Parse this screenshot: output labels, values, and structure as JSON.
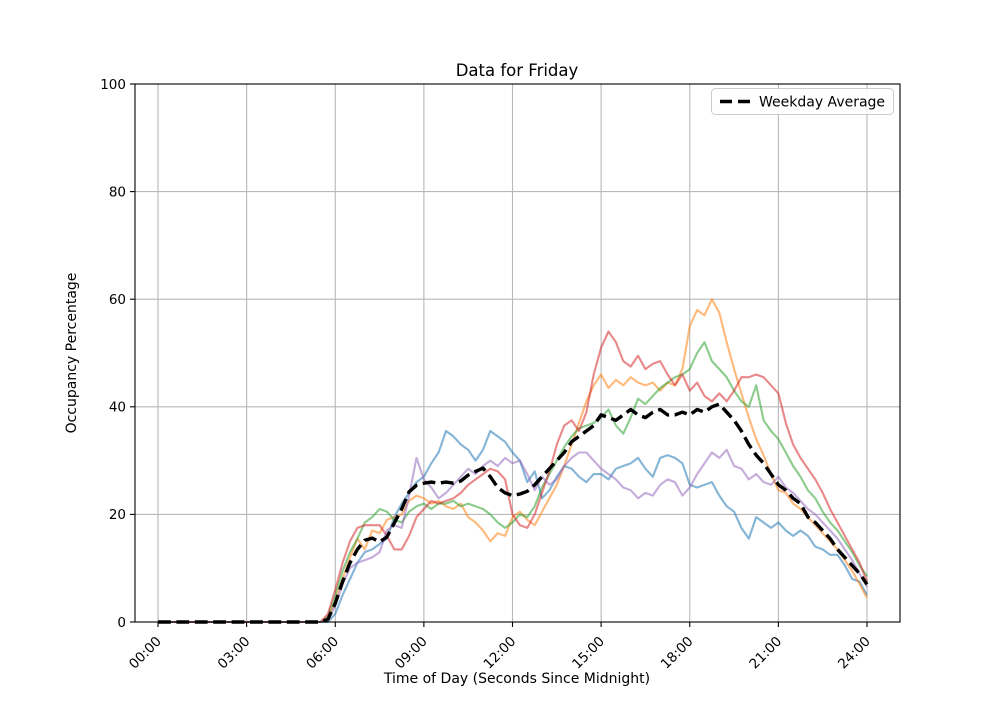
{
  "chart_data": {
    "type": "line",
    "title": "Data for Friday",
    "xlabel": "Time of Day (Seconds Since Midnight)",
    "ylabel": "Occupancy Percentage",
    "grid": true,
    "legend_position": "upper right",
    "legend_entries": [
      "Weekday Average"
    ],
    "x_axis": {
      "tick_labels": [
        "00:00",
        "03:00",
        "06:00",
        "09:00",
        "12:00",
        "15:00",
        "18:00",
        "21:00",
        "24:00"
      ],
      "tick_hours": [
        0,
        3,
        6,
        9,
        12,
        15,
        18,
        21,
        24
      ],
      "range_hours": [
        0,
        24
      ]
    },
    "y_axis": {
      "ticks": [
        0,
        20,
        40,
        60,
        80,
        100
      ],
      "range": [
        0,
        100
      ]
    },
    "sampling": {
      "start_hour": 0,
      "step_hours": 0.25
    },
    "series": [
      {
        "id": "day-series-1",
        "color": "#1f77b4",
        "opacity": 0.55,
        "width": 2.1,
        "dashed": false,
        "values": [
          0,
          0,
          0,
          0,
          0,
          0,
          0,
          0,
          0,
          0,
          0,
          0,
          0,
          0,
          0,
          0,
          0,
          0,
          0,
          0,
          0,
          0,
          0,
          0,
          1.5,
          5,
          8,
          11,
          13,
          13.5,
          14.5,
          15.5,
          19.5,
          22,
          24,
          26,
          27,
          29.5,
          31.5,
          35.5,
          34.5,
          33,
          32,
          30,
          32,
          35.5,
          34.5,
          33.5,
          31.5,
          30,
          26,
          28,
          23,
          24.5,
          27,
          29,
          28.5,
          27,
          26,
          27.5,
          27.5,
          26.5,
          28.5,
          29,
          29.5,
          30.5,
          28.5,
          27,
          30.5,
          31,
          30.5,
          29.5,
          25.5,
          25,
          25.5,
          26,
          23.5,
          21.5,
          20.5,
          17.5,
          15.5,
          19.5,
          18.5,
          17.5,
          18.5,
          17,
          16,
          17,
          16,
          14,
          13.5,
          12.5,
          12.5,
          10.5,
          8,
          7.5,
          5
        ]
      },
      {
        "id": "day-series-2",
        "color": "#ff7f0e",
        "opacity": 0.55,
        "width": 2.1,
        "dashed": false,
        "values": [
          0,
          0,
          0,
          0,
          0,
          0,
          0,
          0,
          0,
          0,
          0,
          0,
          0,
          0,
          0,
          0,
          0,
          0,
          0,
          0,
          0,
          0,
          0,
          0.5,
          4,
          8,
          12,
          15.5,
          13.5,
          17,
          16.5,
          19,
          19.5,
          20,
          22.5,
          23.5,
          23,
          22,
          22.5,
          21.5,
          21,
          22,
          19.5,
          18.5,
          17,
          15,
          16.5,
          16,
          19.5,
          20.5,
          19,
          18,
          20.5,
          23,
          25.5,
          29,
          33,
          37,
          41,
          44,
          46,
          43.5,
          45,
          44,
          45.5,
          44.5,
          44,
          44.5,
          43,
          44.5,
          44,
          47,
          55,
          58,
          57,
          60,
          57.5,
          52,
          47,
          42.5,
          38,
          34,
          31,
          27.5,
          24.5,
          24,
          22,
          21,
          19.5,
          18,
          16.5,
          15,
          13.5,
          11.5,
          9.5,
          7,
          4.5
        ]
      },
      {
        "id": "day-series-3",
        "color": "#2ca02c",
        "opacity": 0.55,
        "width": 2.1,
        "dashed": false,
        "values": [
          0,
          0,
          0,
          0,
          0,
          0,
          0,
          0,
          0,
          0,
          0,
          0,
          0,
          0,
          0,
          0,
          0,
          0,
          0,
          0,
          0,
          0,
          0,
          1,
          5,
          9.5,
          13,
          15.5,
          18.5,
          19.5,
          21,
          20.5,
          19,
          18.5,
          20.5,
          21.5,
          22,
          21,
          22,
          22,
          22.5,
          21.5,
          22,
          21.5,
          21,
          20,
          18.5,
          17.5,
          18.5,
          20,
          19.5,
          21.5,
          25,
          27.5,
          30,
          32.5,
          34.5,
          36,
          36.5,
          37,
          38,
          39.5,
          36.5,
          35,
          38,
          41.5,
          40.5,
          42,
          43.5,
          44.5,
          45.5,
          46,
          47,
          50,
          52,
          48.5,
          47,
          45.5,
          43,
          41,
          40,
          44,
          37.5,
          35.5,
          34,
          31.5,
          29,
          27,
          24.5,
          23,
          20.5,
          18.5,
          17,
          15,
          13,
          10.5,
          8.5
        ]
      },
      {
        "id": "day-series-4",
        "color": "#d62728",
        "opacity": 0.55,
        "width": 2.1,
        "dashed": false,
        "values": [
          0,
          0,
          0,
          0,
          0,
          0,
          0,
          0,
          0,
          0,
          0,
          0,
          0,
          0,
          0,
          0,
          0,
          0,
          0,
          0,
          0,
          0,
          0,
          1.5,
          6,
          11,
          15,
          17.5,
          18,
          18,
          18,
          16,
          13.5,
          13.5,
          16,
          19.5,
          21,
          22.5,
          22,
          22.5,
          23,
          24,
          25.5,
          26.5,
          27.5,
          28.5,
          28,
          26.5,
          20,
          18,
          17.5,
          20,
          24,
          28,
          33,
          36.5,
          37.5,
          35.5,
          39,
          46,
          51,
          54,
          52,
          48.5,
          47.5,
          49.5,
          47,
          48,
          48.5,
          46,
          44,
          46,
          43,
          44.5,
          42,
          41,
          42.5,
          41,
          43,
          45.5,
          45.5,
          46,
          45.5,
          44,
          42.5,
          37,
          33,
          30.5,
          28.5,
          26.5,
          24,
          21,
          18.5,
          16,
          13.5,
          11,
          7.5
        ]
      },
      {
        "id": "day-series-5",
        "color": "#9467bd",
        "opacity": 0.55,
        "width": 2.1,
        "dashed": false,
        "values": [
          0,
          0,
          0,
          0,
          0,
          0,
          0,
          0,
          0,
          0,
          0,
          0,
          0,
          0,
          0,
          0,
          0,
          0,
          0,
          0,
          0,
          0,
          0,
          0.5,
          3,
          7,
          10,
          11,
          11.5,
          12,
          13,
          17,
          18,
          17.5,
          23.5,
          30.5,
          26.5,
          25,
          23,
          24,
          25.5,
          27,
          28.5,
          27.5,
          29,
          30,
          29,
          30.5,
          29.5,
          30,
          27.5,
          24.5,
          27,
          25.5,
          26.5,
          29,
          30.5,
          31.5,
          31.5,
          30,
          28.5,
          27.5,
          26.5,
          25,
          24.5,
          23,
          24,
          23.5,
          25.5,
          26.5,
          26,
          23.5,
          25,
          27.5,
          29.5,
          31.5,
          30.5,
          32,
          29,
          28.5,
          26.5,
          27.5,
          26,
          25.5,
          27,
          25,
          24,
          22.5,
          21,
          20,
          18.5,
          17,
          15.5,
          13.5,
          11.5,
          9,
          6.5
        ]
      },
      {
        "id": "weekday-average",
        "label": "Weekday Average",
        "color": "#000000",
        "opacity": 1,
        "width": 3.4,
        "dashed": true,
        "values": [
          0,
          0,
          0,
          0,
          0,
          0,
          0,
          0,
          0,
          0,
          0,
          0,
          0,
          0,
          0,
          0,
          0,
          0,
          0,
          0,
          0,
          0,
          0,
          0.5,
          3.5,
          7.5,
          11,
          13.5,
          15.2,
          15.6,
          14.9,
          15.8,
          18.4,
          21,
          24.2,
          25.4,
          25.8,
          26,
          25.8,
          26,
          25.8,
          26.2,
          27.3,
          28,
          28.6,
          27,
          25,
          24,
          23.5,
          23.8,
          24.3,
          25.5,
          27,
          28.5,
          30,
          31.5,
          33.5,
          34.5,
          35.5,
          36.5,
          38.5,
          38,
          37.5,
          38.5,
          39.5,
          38.5,
          38,
          39,
          39.5,
          38.5,
          38.5,
          39,
          38.5,
          39.5,
          39,
          40,
          40.5,
          39,
          37.5,
          35.5,
          33,
          31,
          29.5,
          27.5,
          25.5,
          24.5,
          23,
          22,
          19.5,
          18.5,
          17,
          15.5,
          13.5,
          12,
          10.5,
          9,
          7
        ]
      }
    ],
    "style": {
      "grid_color": "#b8b8b8",
      "spine_color": "#000000",
      "background": "#ffffff",
      "legend_border": "#cccccc",
      "dash_pattern": "12.8 5.6"
    }
  }
}
